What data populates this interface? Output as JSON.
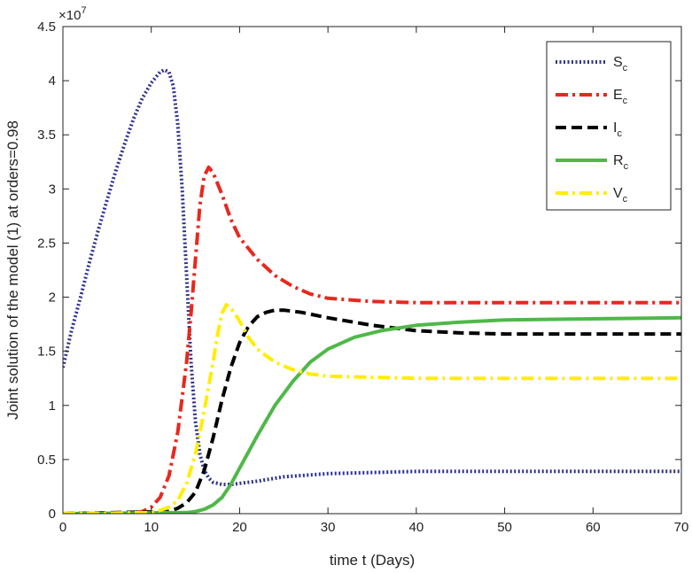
{
  "chart_data": {
    "type": "line",
    "xlabel": "time t (Days)",
    "ylabel": "Joint solution of the model (1) at orders=0.98",
    "xlim": [
      0,
      70
    ],
    "ylim": [
      0,
      4.5
    ],
    "y_multiplier_base": "×10",
    "y_multiplier_exp": "7",
    "x_ticks": [
      "0",
      "10",
      "20",
      "30",
      "40",
      "50",
      "60",
      "70"
    ],
    "y_ticks": [
      "0",
      "0.5",
      "1",
      "1.5",
      "2",
      "2.5",
      "3",
      "3.5",
      "4",
      "4.5"
    ],
    "grid": false,
    "legend_position": "top-right",
    "series": [
      {
        "name": "S",
        "subscript": "c",
        "color": "#2e3192",
        "dash": "dotted",
        "points": [
          [
            0,
            1.35
          ],
          [
            1,
            1.7
          ],
          [
            2,
            2.0
          ],
          [
            3,
            2.32
          ],
          [
            4,
            2.62
          ],
          [
            5,
            2.9
          ],
          [
            6,
            3.17
          ],
          [
            7,
            3.42
          ],
          [
            8,
            3.65
          ],
          [
            9,
            3.84
          ],
          [
            10,
            3.98
          ],
          [
            11,
            4.08
          ],
          [
            11.5,
            4.1
          ],
          [
            12,
            4.08
          ],
          [
            12.5,
            3.95
          ],
          [
            13,
            3.6
          ],
          [
            13.5,
            3.0
          ],
          [
            14,
            2.2
          ],
          [
            14.5,
            1.4
          ],
          [
            15,
            0.85
          ],
          [
            15.5,
            0.55
          ],
          [
            16,
            0.4
          ],
          [
            16.5,
            0.33
          ],
          [
            17,
            0.29
          ],
          [
            18,
            0.27
          ],
          [
            19,
            0.27
          ],
          [
            20,
            0.28
          ],
          [
            22,
            0.3
          ],
          [
            25,
            0.34
          ],
          [
            30,
            0.37
          ],
          [
            40,
            0.39
          ],
          [
            50,
            0.39
          ],
          [
            60,
            0.39
          ],
          [
            70,
            0.39
          ]
        ]
      },
      {
        "name": "E",
        "subscript": "c",
        "color": "#e8281f",
        "dash": "dashdot",
        "points": [
          [
            0,
            0
          ],
          [
            8,
            0.01
          ],
          [
            9,
            0.02
          ],
          [
            10,
            0.06
          ],
          [
            11,
            0.15
          ],
          [
            12,
            0.35
          ],
          [
            13,
            0.75
          ],
          [
            14,
            1.4
          ],
          [
            14.5,
            1.85
          ],
          [
            15,
            2.35
          ],
          [
            15.5,
            2.85
          ],
          [
            16,
            3.12
          ],
          [
            16.5,
            3.2
          ],
          [
            17,
            3.15
          ],
          [
            18,
            2.95
          ],
          [
            19,
            2.72
          ],
          [
            20,
            2.55
          ],
          [
            22,
            2.35
          ],
          [
            24,
            2.2
          ],
          [
            26,
            2.1
          ],
          [
            28,
            2.03
          ],
          [
            30,
            1.99
          ],
          [
            35,
            1.96
          ],
          [
            40,
            1.95
          ],
          [
            50,
            1.95
          ],
          [
            60,
            1.95
          ],
          [
            70,
            1.95
          ]
        ]
      },
      {
        "name": "I",
        "subscript": "c",
        "color": "#000000",
        "dash": "dashed",
        "points": [
          [
            0,
            0
          ],
          [
            12,
            0.02
          ],
          [
            13,
            0.05
          ],
          [
            14,
            0.1
          ],
          [
            15,
            0.2
          ],
          [
            16,
            0.4
          ],
          [
            17,
            0.7
          ],
          [
            18,
            1.05
          ],
          [
            19,
            1.35
          ],
          [
            20,
            1.58
          ],
          [
            21,
            1.73
          ],
          [
            22,
            1.82
          ],
          [
            23,
            1.86
          ],
          [
            24,
            1.88
          ],
          [
            25,
            1.88
          ],
          [
            27,
            1.86
          ],
          [
            30,
            1.81
          ],
          [
            35,
            1.74
          ],
          [
            40,
            1.69
          ],
          [
            45,
            1.67
          ],
          [
            50,
            1.66
          ],
          [
            60,
            1.66
          ],
          [
            70,
            1.66
          ]
        ]
      },
      {
        "name": "R",
        "subscript": "c",
        "color": "#4fb848",
        "dash": "solid",
        "points": [
          [
            0,
            0
          ],
          [
            14,
            0.01
          ],
          [
            15,
            0.02
          ],
          [
            16,
            0.04
          ],
          [
            17,
            0.08
          ],
          [
            18,
            0.15
          ],
          [
            19,
            0.27
          ],
          [
            20,
            0.42
          ],
          [
            22,
            0.72
          ],
          [
            24,
            1.0
          ],
          [
            26,
            1.22
          ],
          [
            28,
            1.4
          ],
          [
            30,
            1.52
          ],
          [
            33,
            1.63
          ],
          [
            36,
            1.69
          ],
          [
            40,
            1.74
          ],
          [
            45,
            1.77
          ],
          [
            50,
            1.79
          ],
          [
            60,
            1.8
          ],
          [
            70,
            1.81
          ]
        ]
      },
      {
        "name": "V",
        "subscript": "c",
        "color": "#ffee00",
        "dash": "dashdot",
        "points": [
          [
            0,
            0
          ],
          [
            10,
            0.01
          ],
          [
            11,
            0.03
          ],
          [
            12,
            0.06
          ],
          [
            13,
            0.12
          ],
          [
            14,
            0.28
          ],
          [
            15,
            0.55
          ],
          [
            16,
            0.95
          ],
          [
            17,
            1.4
          ],
          [
            17.5,
            1.65
          ],
          [
            18,
            1.85
          ],
          [
            18.5,
            1.93
          ],
          [
            19,
            1.9
          ],
          [
            20,
            1.78
          ],
          [
            21,
            1.63
          ],
          [
            22,
            1.52
          ],
          [
            24,
            1.4
          ],
          [
            26,
            1.33
          ],
          [
            28,
            1.29
          ],
          [
            30,
            1.27
          ],
          [
            35,
            1.26
          ],
          [
            40,
            1.25
          ],
          [
            50,
            1.25
          ],
          [
            60,
            1.25
          ],
          [
            70,
            1.25
          ]
        ]
      }
    ]
  }
}
